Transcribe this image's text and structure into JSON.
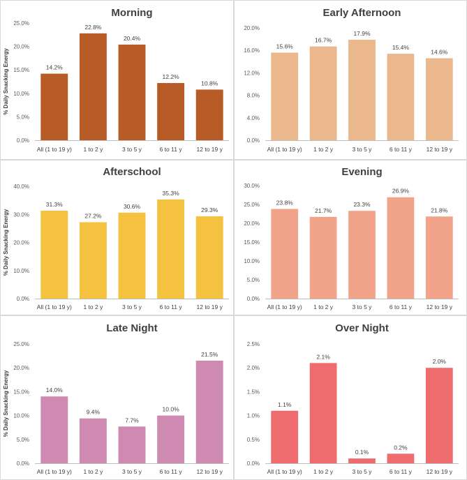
{
  "chart_data": [
    {
      "type": "bar",
      "title": "Morning",
      "ylabel": "% Daily Snacking Energy",
      "categories": [
        "All (1 to 19 y)",
        "1 to 2 y",
        "3 to 5 y",
        "6 to 11 y",
        "12 to 19 y"
      ],
      "values": [
        14.2,
        22.8,
        20.4,
        12.2,
        10.8
      ],
      "data_labels": [
        "14.2%",
        "22.8%",
        "20.4%",
        "12.2%",
        "10.8%"
      ],
      "ylim": [
        0,
        25
      ],
      "yticks": [
        0,
        5,
        10,
        15,
        20,
        25
      ],
      "ytick_labels": [
        "0.0%",
        "5.0%",
        "10.0%",
        "15.0%",
        "20.0%",
        "25.0%"
      ],
      "color": "#B85C27",
      "grid": false
    },
    {
      "type": "bar",
      "title": "Early Afternoon",
      "ylabel": "",
      "categories": [
        "All (1 to 19 y)",
        "1 to 2 y",
        "3 to 5 y",
        "6 to 11 y",
        "12 to 19 y"
      ],
      "values": [
        15.6,
        16.7,
        17.9,
        15.4,
        14.6
      ],
      "data_labels": [
        "15.6%",
        "16.7%",
        "17.9%",
        "15.4%",
        "14.6%"
      ],
      "ylim": [
        0,
        20
      ],
      "yticks": [
        0,
        4,
        8,
        12,
        16,
        20
      ],
      "ytick_labels": [
        "0.0%",
        "4.0%",
        "8.0%",
        "12.0%",
        "16.0%",
        "20.0%"
      ],
      "color": "#EBB88D",
      "grid": false
    },
    {
      "type": "bar",
      "title": "Afterschool",
      "ylabel": "% Daily Snacking Energy",
      "categories": [
        "All (1 to 19 y)",
        "1 to 2 y",
        "3 to 5 y",
        "6 to 11 y",
        "12 to 19 y"
      ],
      "values": [
        31.3,
        27.2,
        30.6,
        35.3,
        29.3
      ],
      "data_labels": [
        "31.3%",
        "27.2%",
        "30.6%",
        "35.3%",
        "29.3%"
      ],
      "ylim": [
        0,
        40
      ],
      "yticks": [
        0,
        10,
        20,
        30,
        40
      ],
      "ytick_labels": [
        "0.0%",
        "10.0%",
        "20.0%",
        "30.0%",
        "40.0%"
      ],
      "color": "#F4C23F",
      "grid": false
    },
    {
      "type": "bar",
      "title": "Evening",
      "ylabel": "",
      "categories": [
        "All (1 to 19 y)",
        "1 to 2 y",
        "3 to 5 y",
        "6 to 11 y",
        "12 to 19 y"
      ],
      "values": [
        23.8,
        21.7,
        23.3,
        26.9,
        21.8
      ],
      "data_labels": [
        "23.8%",
        "21.7%",
        "23.3%",
        "26.9%",
        "21.8%"
      ],
      "ylim": [
        0,
        30
      ],
      "yticks": [
        0,
        5,
        10,
        15,
        20,
        25,
        30
      ],
      "ytick_labels": [
        "0.0%",
        "5.0%",
        "10.0%",
        "15.0%",
        "20.0%",
        "25.0%",
        "30.0%"
      ],
      "color": "#F2A48A",
      "grid": false
    },
    {
      "type": "bar",
      "title": "Late Night",
      "ylabel": "% Daily Snacking Energy",
      "categories": [
        "All (1 to 19 y)",
        "1 to 2 y",
        "3 to 5 y",
        "6 to 11 y",
        "12 to 19 y"
      ],
      "values": [
        14.0,
        9.4,
        7.7,
        10.0,
        21.5
      ],
      "data_labels": [
        "14.0%",
        "9.4%",
        "7.7%",
        "10.0%",
        "21.5%"
      ],
      "ylim": [
        0,
        25
      ],
      "yticks": [
        0,
        5,
        10,
        15,
        20,
        25
      ],
      "ytick_labels": [
        "0.0%",
        "5.0%",
        "10.0%",
        "15.0%",
        "20.0%",
        "25.0%"
      ],
      "color": "#CF8AB1",
      "grid": false
    },
    {
      "type": "bar",
      "title": "Over Night",
      "ylabel": "",
      "categories": [
        "All (1 to 19 y)",
        "1 to 2 y",
        "3 to 5 y",
        "6 to 11 y",
        "12 to 19 y"
      ],
      "values": [
        1.1,
        2.1,
        0.1,
        0.2,
        2.0
      ],
      "data_labels": [
        "1.1%",
        "2.1%",
        "0.1%",
        "0.2%",
        "2.0%"
      ],
      "ylim": [
        0,
        2.5
      ],
      "yticks": [
        0,
        0.5,
        1.0,
        1.5,
        2.0,
        2.5
      ],
      "ytick_labels": [
        "0.0%",
        "0.5%",
        "1.0%",
        "1.5%",
        "2.0%",
        "2.5%"
      ],
      "color": "#EE6B6E",
      "grid": false
    }
  ]
}
